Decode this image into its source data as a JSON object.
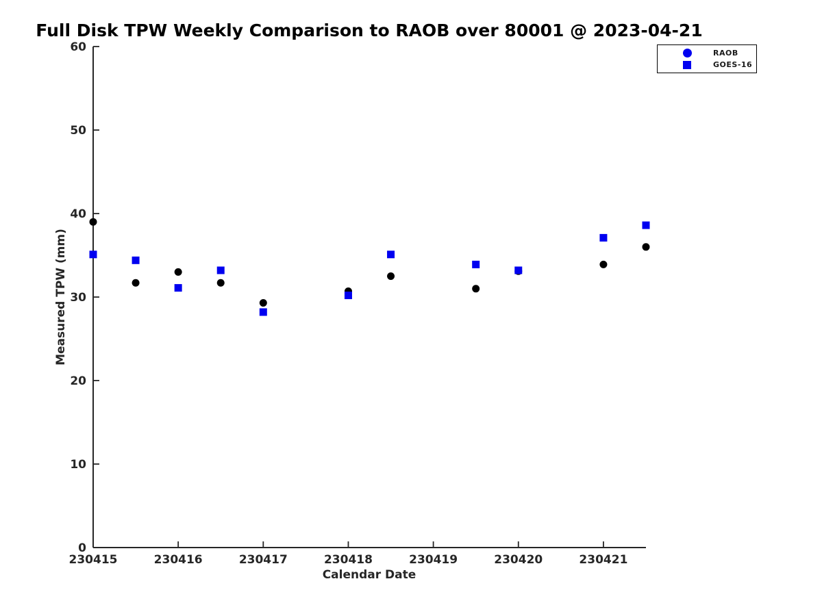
{
  "chart_data": {
    "type": "scatter",
    "title": "Full Disk TPW Weekly Comparison to RAOB over 80001 @ 2023-04-21",
    "xlabel": "Calendar Date",
    "ylabel": "Measured TPW (mm)",
    "xlim": [
      230415,
      230421.5
    ],
    "ylim": [
      0,
      60
    ],
    "x_ticks": [
      230415,
      230416,
      230417,
      230418,
      230419,
      230420,
      230421
    ],
    "y_ticks": [
      0,
      10,
      20,
      30,
      40,
      50,
      60
    ],
    "grid": false,
    "legend_position": "top-right",
    "series": [
      {
        "name": "RAOB",
        "marker": "circle",
        "color": "#000000",
        "legend_color": "#0000F0",
        "x": [
          230415,
          230415.5,
          230416,
          230416.5,
          230417,
          230418,
          230418.5,
          230419.5,
          230420,
          230421,
          230421.5
        ],
        "y": [
          39.0,
          31.7,
          33.0,
          31.7,
          29.3,
          30.7,
          32.5,
          31.0,
          33.1,
          33.9,
          36.0
        ]
      },
      {
        "name": "GOES-16",
        "marker": "square",
        "color": "#0000F0",
        "legend_color": "#0000F0",
        "x": [
          230415,
          230415.5,
          230416,
          230416.5,
          230417,
          230418,
          230418.5,
          230419.5,
          230420,
          230421,
          230421.5
        ],
        "y": [
          35.1,
          34.4,
          31.1,
          33.2,
          28.2,
          30.2,
          35.1,
          33.9,
          33.2,
          37.1,
          38.6
        ]
      }
    ]
  },
  "legend": {
    "items": [
      {
        "label": "RAOB"
      },
      {
        "label": "GOES-16"
      }
    ]
  },
  "colors": {
    "marker_blue": "#0000F0",
    "marker_black": "#000000",
    "axis_text": "#262626",
    "title_text": "#000000"
  }
}
